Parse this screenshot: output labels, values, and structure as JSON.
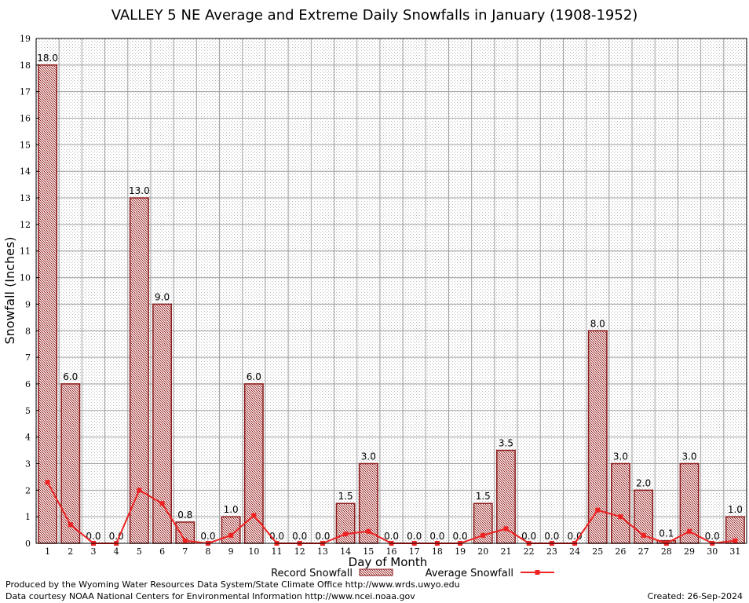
{
  "chart_data": {
    "type": "bar",
    "title": "VALLEY 5 NE Average and Extreme Daily Snowfalls in January (1908-1952)",
    "xlabel": "Day of Month",
    "ylabel": "Snowfall (Inches)",
    "ylim": [
      0,
      19
    ],
    "yticks": [
      "0",
      "1",
      "2",
      "3",
      "4",
      "5",
      "6",
      "7",
      "8",
      "9",
      "10",
      "11",
      "12",
      "13",
      "14",
      "15",
      "16",
      "17",
      "18",
      "19"
    ],
    "categories": [
      "1",
      "2",
      "3",
      "4",
      "5",
      "6",
      "7",
      "8",
      "9",
      "10",
      "11",
      "12",
      "13",
      "14",
      "15",
      "16",
      "17",
      "18",
      "19",
      "20",
      "21",
      "22",
      "23",
      "24",
      "25",
      "26",
      "27",
      "28",
      "29",
      "30",
      "31"
    ],
    "grid": true,
    "legend_position": "bottom",
    "series": [
      {
        "name": "Record Snowfall",
        "type": "bar",
        "color": "#8b1a1a",
        "values": [
          18.0,
          6.0,
          0.0,
          0.0,
          13.0,
          9.0,
          0.8,
          0.0,
          1.0,
          6.0,
          0.0,
          0.0,
          0.0,
          1.5,
          3.0,
          0.0,
          0.0,
          0.0,
          0.0,
          1.5,
          3.5,
          0.0,
          0.0,
          0.0,
          8.0,
          3.0,
          2.0,
          0.1,
          3.0,
          0.0,
          1.0
        ],
        "labels": [
          "18.0",
          "6.0",
          "0.0",
          "0.0",
          "13.0",
          "9.0",
          "0.8",
          "0.0",
          "1.0",
          "6.0",
          "0.0",
          "0.0",
          "0.0",
          "1.5",
          "3.0",
          "0.0",
          "0.0",
          "0.0",
          "0.0",
          "1.5",
          "3.5",
          "0.0",
          "0.0",
          "0.0",
          "8.0",
          "3.0",
          "2.0",
          "0.1",
          "3.0",
          "0.0",
          "1.0"
        ]
      },
      {
        "name": "Average Snowfall",
        "type": "line",
        "color": "#ee2222",
        "values": [
          2.3,
          0.7,
          0.0,
          0.0,
          2.0,
          1.5,
          0.1,
          0.0,
          0.3,
          1.05,
          0.0,
          0.0,
          0.0,
          0.35,
          0.45,
          0.0,
          0.0,
          0.0,
          0.0,
          0.3,
          0.55,
          0.0,
          0.0,
          0.0,
          1.25,
          1.0,
          0.3,
          0.0,
          0.45,
          0.0,
          0.1
        ]
      }
    ]
  },
  "footer": {
    "produced_by": "Produced by the Wyoming Water Resources Data System/State Climate Office http://www.wrds.uwyo.edu",
    "data_courtesy": "Data courtesy NOAA National Centers for Environmental Information http://www.ncei.noaa.gov",
    "created": "Created: 26-Sep-2024"
  }
}
